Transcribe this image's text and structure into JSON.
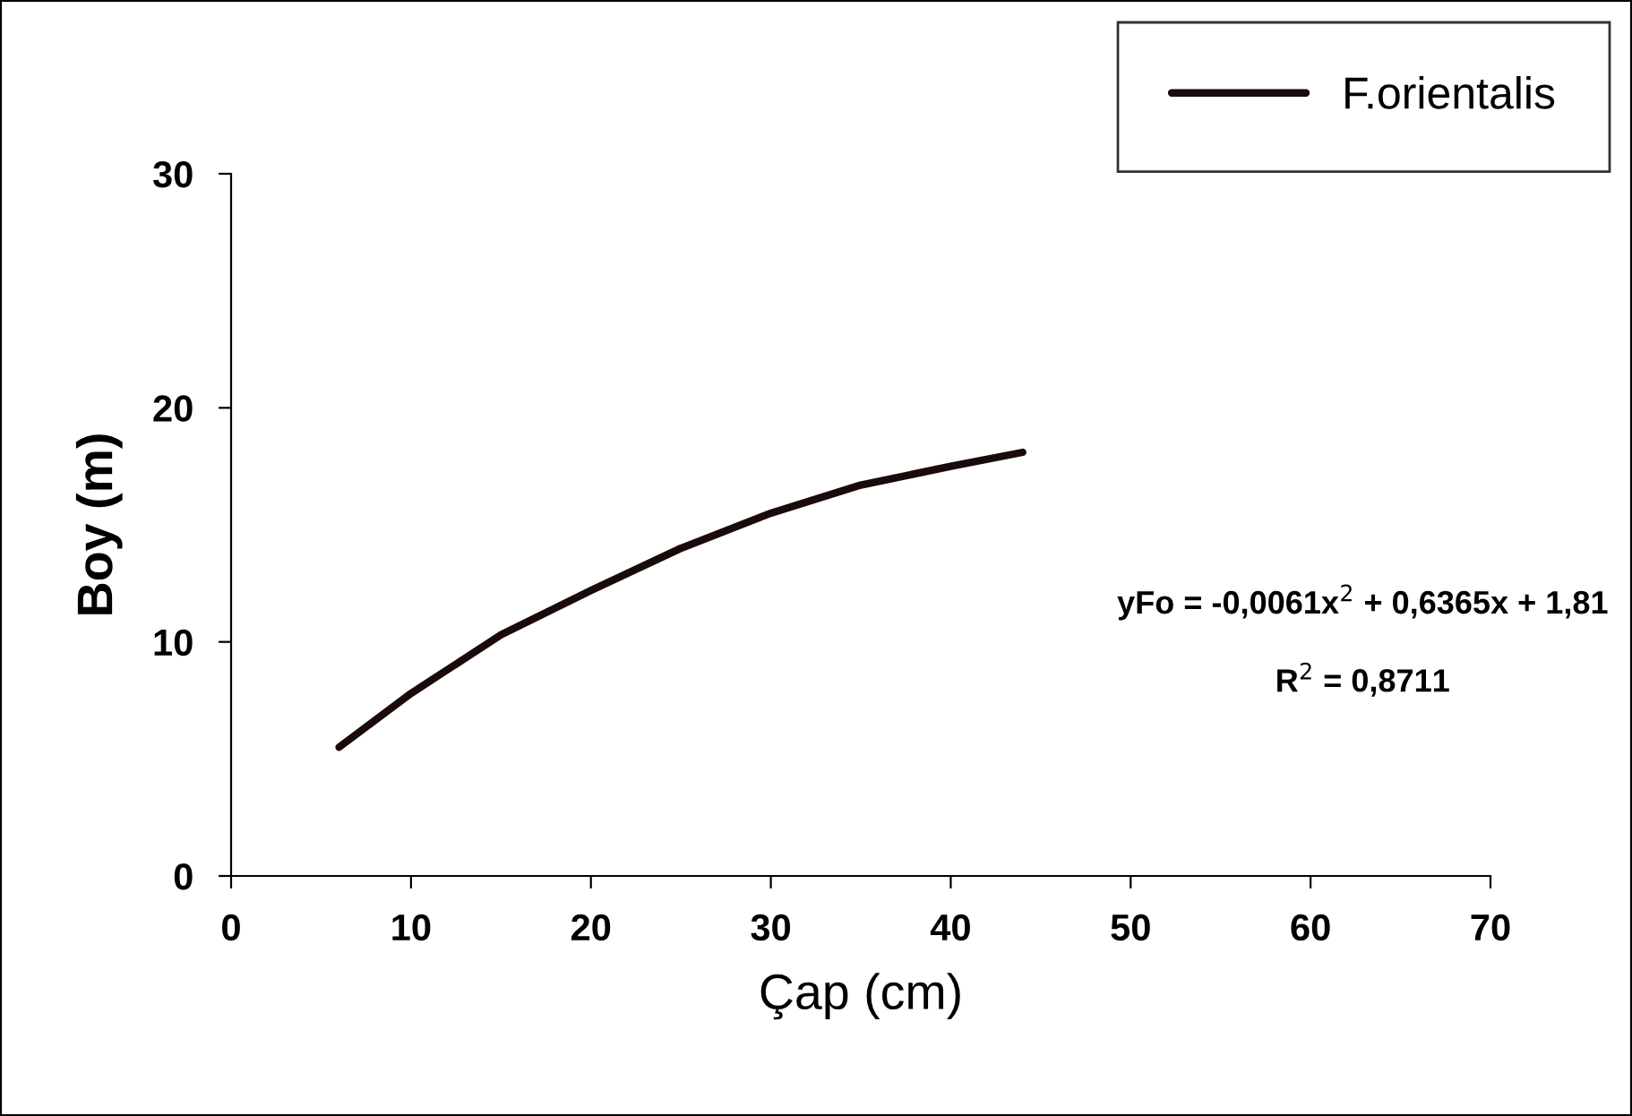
{
  "chart_data": {
    "type": "line",
    "xlabel": "Çap (cm)",
    "ylabel": "Boy (m)",
    "x": [
      6,
      10,
      15,
      20,
      25,
      30,
      35,
      40,
      44
    ],
    "series": [
      {
        "name": "F.orientalis",
        "color": "#1a0a0a",
        "values": [
          5.5,
          7.8,
          10.3,
          12.2,
          14,
          15.5,
          16.7,
          17.5,
          18.1
        ]
      }
    ],
    "xlim": [
      0,
      70
    ],
    "xticks": [
      0,
      10,
      20,
      30,
      40,
      50,
      60,
      70
    ],
    "ylim": [
      0,
      30
    ],
    "yticks": [
      0,
      10,
      20,
      30
    ],
    "grid": false,
    "legend": "top right",
    "marker": "none",
    "line_style": "solid",
    "annotations": [
      "yFo = -0,0061x$^{2}$ + 0,6365x + 1,81",
      "R$^{2}$ = 0,8711"
    ]
  }
}
